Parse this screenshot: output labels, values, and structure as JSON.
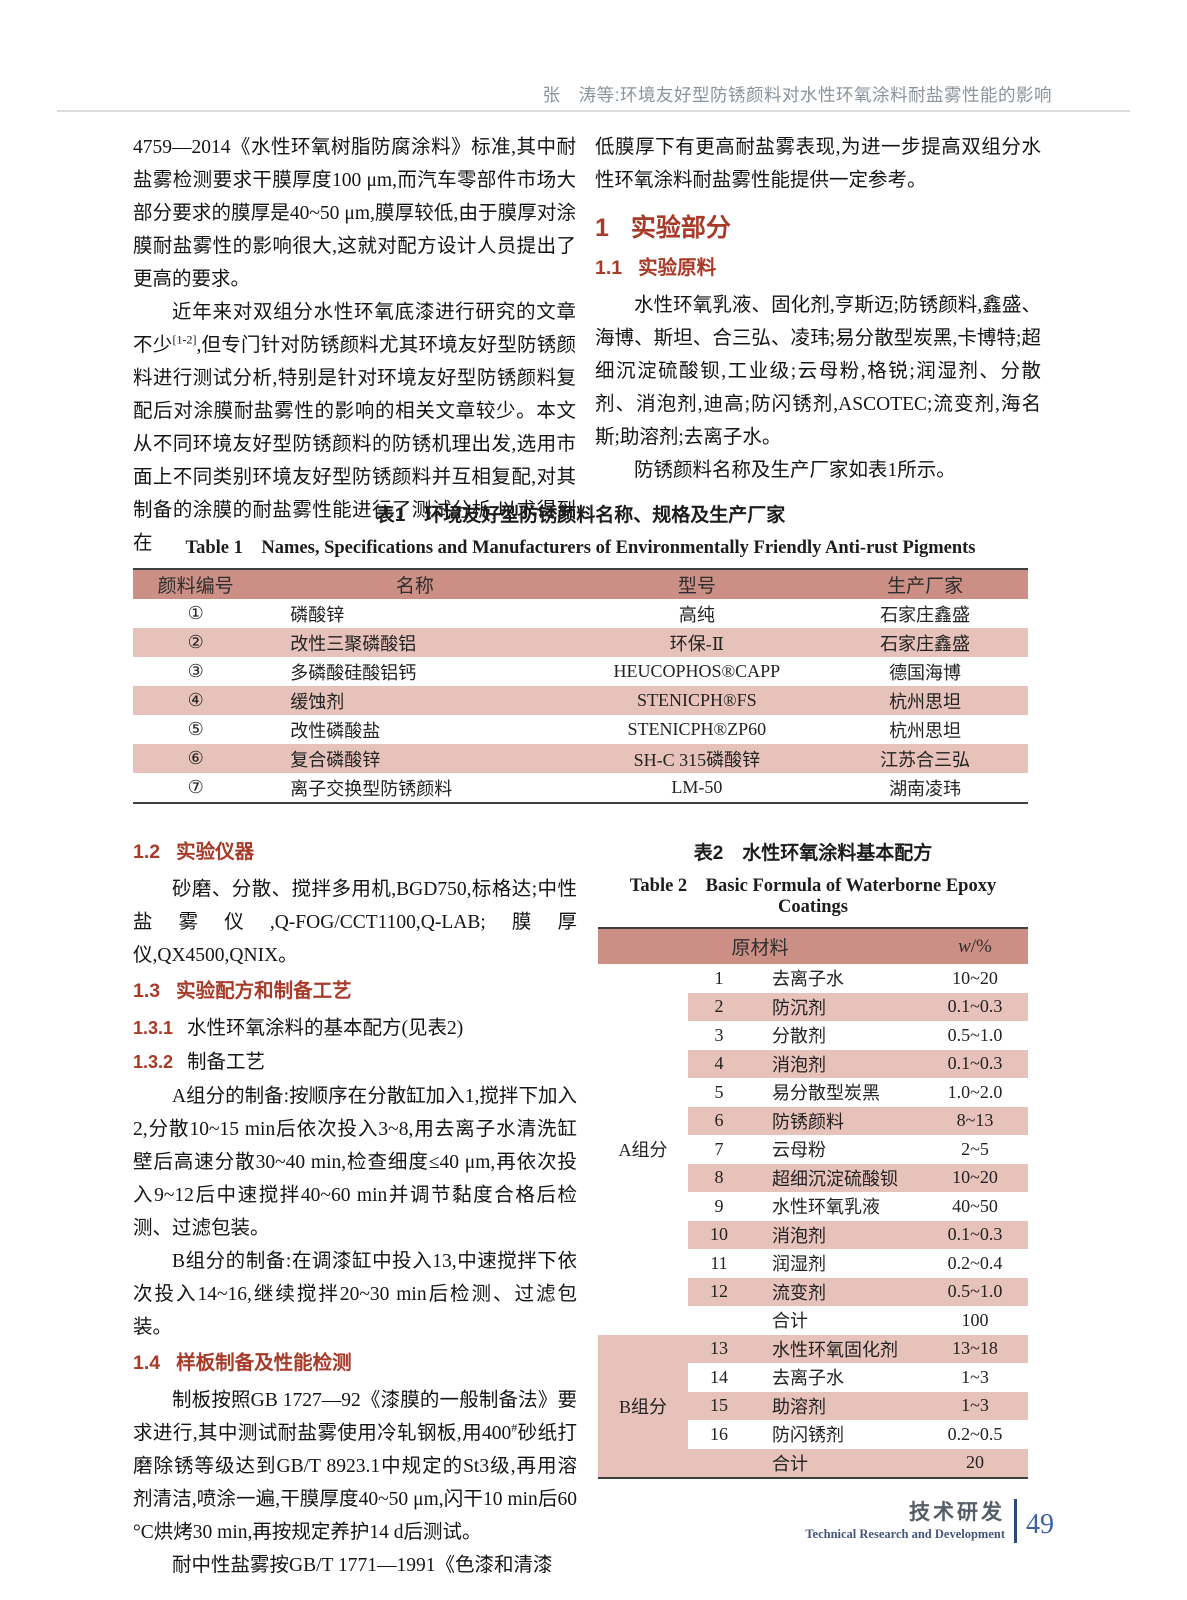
{
  "header": {
    "running_title": "张　涛等:环境友好型防锈颜料对水性环氧涂料耐盐雾性能的影响"
  },
  "left_top": {
    "p1": "4759—2014《水性环氧树脂防腐涂料》标准,其中耐盐雾检测要求干膜厚度100 μm,而汽车零部件市场大部分要求的膜厚是40~50 μm,膜厚较低,由于膜厚对涂膜耐盐雾性的影响很大,这就对配方设计人员提出了更高的要求。",
    "p2_a": "近年来对双组分水性环氧底漆进行研究的文章不少",
    "p2_ref": "[1-2]",
    "p2_b": ",但专门针对防锈颜料尤其环境友好型防锈颜料进行测试分析,特别是针对环境友好型防锈颜料复配后对涂膜耐盐雾性的影响的相关文章较少。本文从不同环境友好型防锈颜料的防锈机理出发,选用市面上不同类别环境友好型防锈颜料并互相复配,对其制备的涂膜的耐盐雾性能进行了测试分析,以求得到在"
  },
  "right_top": {
    "p1": "低膜厚下有更高耐盐雾表现,为进一步提高双组分水性环氧涂料耐盐雾性能提供一定参考。",
    "h1_num": "1",
    "h1_title": "实验部分",
    "h11_num": "1.1",
    "h11_title": "实验原料",
    "p2": "水性环氧乳液、固化剂,亨斯迈;防锈颜料,鑫盛、海博、斯坦、合三弘、凌玮;易分散型炭黑,卡博特;超细沉淀硫酸钡,工业级;云母粉,格锐;润湿剂、分散剂、消泡剂,迪高;防闪锈剂,ASCOTEC;流变剂,海名斯;助溶剂;去离子水。",
    "p3": "防锈颜料名称及生产厂家如表1所示。"
  },
  "t1": {
    "title_cn": "表1　环境友好型防锈颜料名称、规格及生产厂家",
    "title_en": "Table 1　Names, Specifications and Manufacturers of Environmentally Friendly Anti-rust Pigments",
    "headers": [
      "颜料编号",
      "名称",
      "型号",
      "生产厂家"
    ],
    "rows": [
      [
        "①",
        "磷酸锌",
        "高纯",
        "石家庄鑫盛"
      ],
      [
        "②",
        "改性三聚磷酸铝",
        "环保-Ⅱ",
        "石家庄鑫盛"
      ],
      [
        "③",
        "多磷酸硅酸铝钙",
        "HEUCOPHOS®CAPP",
        "德国海博"
      ],
      [
        "④",
        "缓蚀剂",
        "STENICPH®FS",
        "杭州思坦"
      ],
      [
        "⑤",
        "改性磷酸盐",
        "STENICPH®ZP60",
        "杭州思坦"
      ],
      [
        "⑥",
        "复合磷酸锌",
        "SH-C 315磷酸锌",
        "江苏合三弘"
      ],
      [
        "⑦",
        "离子交换型防锈颜料",
        "LM-50",
        "湖南凌玮"
      ]
    ]
  },
  "left_bottom": {
    "sec12_num": "1.2",
    "sec12_title": "实验仪器",
    "sec12_p": "砂磨、分散、搅拌多用机,BGD750,标格达;中性盐雾仪,Q-FOG/CCT1100,Q-LAB;膜厚仪,QX4500,QNIX。",
    "sec13_num": "1.3",
    "sec13_title": "实验配方和制备工艺",
    "sec131_num": "1.3.1",
    "sec131_title": "水性环氧涂料的基本配方(见表2)",
    "sec132_num": "1.3.2",
    "sec132_title": "制备工艺",
    "p_a": "A组分的制备:按顺序在分散缸加入1,搅拌下加入2,分散10~15 min后依次投入3~8,用去离子水清洗缸壁后高速分散30~40 min,检查细度≤40 μm,再依次投入9~12后中速搅拌40~60 min并调节黏度合格后检测、过滤包装。",
    "p_b": "B组分的制备:在调漆缸中投入13,中速搅拌下依次投入14~16,继续搅拌20~30 min后检测、过滤包装。",
    "sec14_num": "1.4",
    "sec14_title": "样板制备及性能检测",
    "p_c1": "制板按照GB 1727—92《漆膜的一般制备法》要求进行,其中测试耐盐雾使用冷轧钢板,用400",
    "p_c_sup": "#",
    "p_c2": "砂纸打磨除锈等级达到GB/T 8923.1中规定的St3级,再用溶剂清洁,喷涂一遍,干膜厚度40~50 μm,闪干10 min后60 °C烘烤30 min,再按规定养护14 d后测试。",
    "p_d": "耐中性盐雾按GB/T 1771—1991《色漆和清漆"
  },
  "t2": {
    "title_cn": "表2　水性环氧涂料基本配方",
    "title_en": "Table 2　Basic Formula of Waterborne Epoxy Coatings",
    "col_material": "原材料",
    "col_w_letter": "w",
    "col_w_rest": "/%",
    "group_a": "A组分",
    "group_b": "B组分",
    "total_label": "合计",
    "total_a": "100",
    "total_b": "20",
    "rows_a": [
      {
        "no": "1",
        "name": "去离子水",
        "w": "10~20"
      },
      {
        "no": "2",
        "name": "防沉剂",
        "w": "0.1~0.3"
      },
      {
        "no": "3",
        "name": "分散剂",
        "w": "0.5~1.0"
      },
      {
        "no": "4",
        "name": "消泡剂",
        "w": "0.1~0.3"
      },
      {
        "no": "5",
        "name": "易分散型炭黑",
        "w": "1.0~2.0"
      },
      {
        "no": "6",
        "name": "防锈颜料",
        "w": "8~13"
      },
      {
        "no": "7",
        "name": "云母粉",
        "w": "2~5"
      },
      {
        "no": "8",
        "name": "超细沉淀硫酸钡",
        "w": "10~20"
      },
      {
        "no": "9",
        "name": "水性环氧乳液",
        "w": "40~50"
      },
      {
        "no": "10",
        "name": "消泡剂",
        "w": "0.1~0.3"
      },
      {
        "no": "11",
        "name": "润湿剂",
        "w": "0.2~0.4"
      },
      {
        "no": "12",
        "name": "流变剂",
        "w": "0.5~1.0"
      }
    ],
    "rows_b": [
      {
        "no": "13",
        "name": "水性环氧固化剂",
        "w": "13~18"
      },
      {
        "no": "14",
        "name": "去离子水",
        "w": "1~3"
      },
      {
        "no": "15",
        "name": "助溶剂",
        "w": "1~3"
      },
      {
        "no": "16",
        "name": "防闪锈剂",
        "w": "0.2~0.5"
      }
    ]
  },
  "footer": {
    "section_cn": "技术研发",
    "section_en": "Technical Research and Development",
    "page_number": "49"
  }
}
